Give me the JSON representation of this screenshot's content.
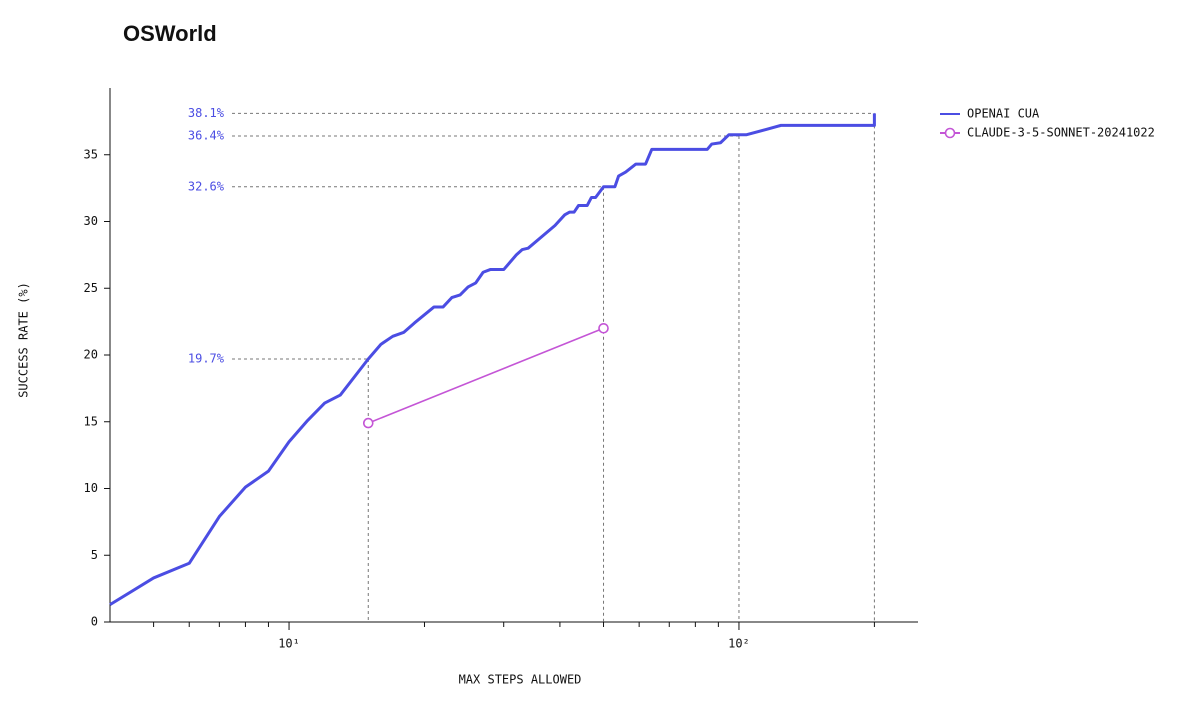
{
  "chart_data": {
    "type": "line",
    "title": "OSWorld",
    "xlabel": "MAX STEPS ALLOWED",
    "ylabel": "SUCCESS RATE (%)",
    "xscale": "log",
    "xlim": [
      4,
      250
    ],
    "xticks": [
      {
        "value": 10,
        "label": "10¹"
      },
      {
        "value": 100,
        "label": "10²"
      }
    ],
    "xminorticks": [
      5,
      6,
      7,
      8,
      9,
      20,
      30,
      40,
      50,
      60,
      70,
      80,
      90,
      200
    ],
    "ylim": [
      0,
      40
    ],
    "yticks": [
      0,
      5,
      10,
      15,
      20,
      25,
      30,
      35
    ],
    "legend": "upper right",
    "series": [
      {
        "name": "OPENAI CUA",
        "color": "#4b4de3",
        "marker": false,
        "x": [
          4,
          5,
          6,
          7,
          8,
          9,
          10,
          11,
          12,
          13,
          15,
          16,
          17,
          18,
          19,
          21,
          22,
          23,
          24,
          25,
          26,
          27,
          28,
          30,
          32,
          33,
          34,
          39,
          41,
          42,
          43,
          44,
          46,
          47,
          48,
          50,
          53,
          54,
          56,
          59,
          62,
          64,
          85,
          87,
          91,
          95,
          104,
          115,
          124,
          200,
          200
        ],
        "values": [
          1.3,
          3.3,
          4.4,
          7.9,
          10.1,
          11.3,
          13.5,
          15.1,
          16.4,
          17.0,
          19.7,
          20.8,
          21.4,
          21.7,
          22.4,
          23.6,
          23.6,
          24.3,
          24.5,
          25.1,
          25.4,
          26.2,
          26.4,
          26.4,
          27.5,
          27.9,
          28.0,
          29.7,
          30.5,
          30.7,
          30.7,
          31.2,
          31.2,
          31.8,
          31.8,
          32.6,
          32.6,
          33.4,
          33.7,
          34.3,
          34.3,
          35.4,
          35.4,
          35.8,
          35.9,
          36.5,
          36.5,
          36.9,
          37.2,
          37.2,
          38.1
        ]
      },
      {
        "name": "CLAUDE-3-5-SONNET-20241022",
        "color": "#c455d6",
        "marker": true,
        "x": [
          15,
          50
        ],
        "values": [
          14.9,
          22.0
        ]
      }
    ],
    "annotations": [
      {
        "x": 200,
        "y": 38.1,
        "label": "38.1%"
      },
      {
        "x": 100,
        "y": 36.4,
        "label": "36.4%"
      },
      {
        "x": 50,
        "y": 32.6,
        "label": "32.6%"
      },
      {
        "x": 15,
        "y": 19.7,
        "label": "19.7%"
      }
    ]
  }
}
